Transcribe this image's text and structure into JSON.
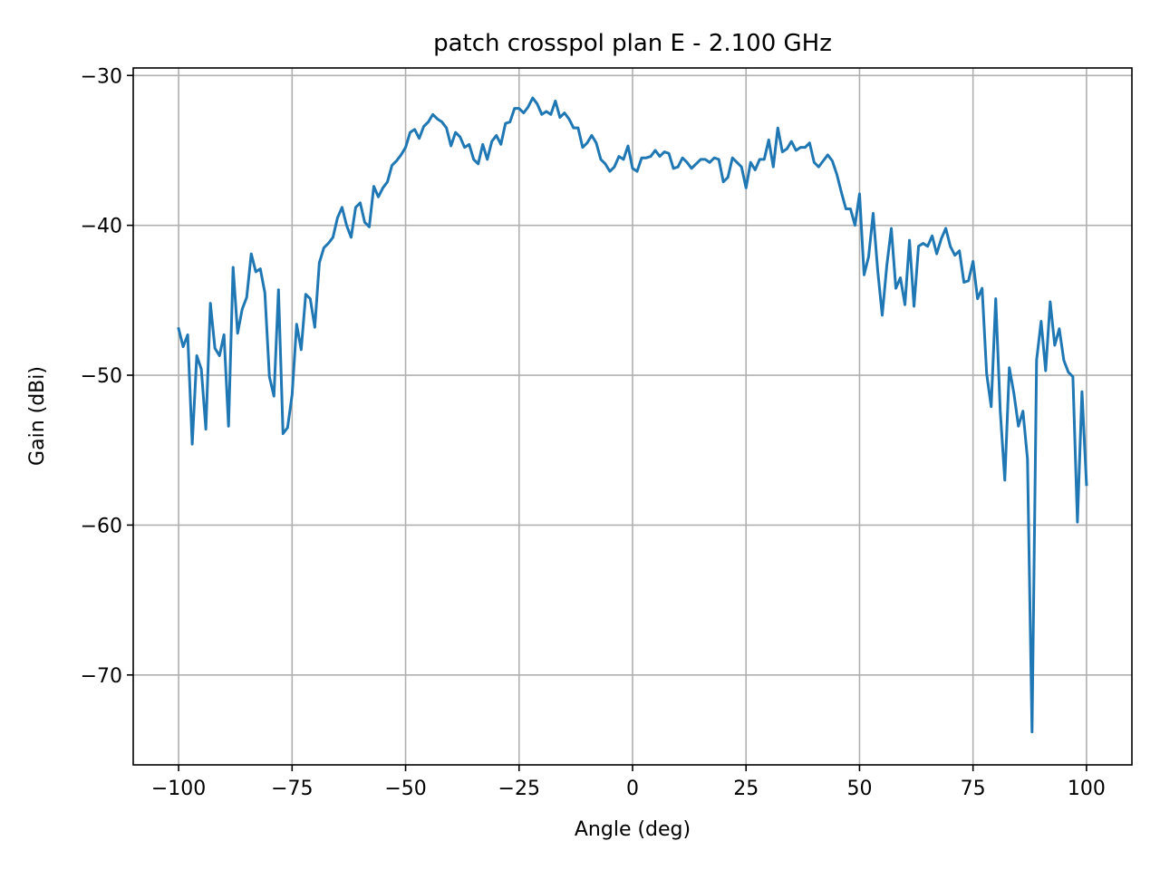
{
  "chart_data": {
    "type": "line",
    "title": "patch crosspol plan E - 2.100 GHz",
    "xlabel": "Angle (deg)",
    "ylabel": "Gain (dBi)",
    "xlim": [
      -110,
      110
    ],
    "ylim": [
      -76,
      -29.5
    ],
    "xticks": [
      -100,
      -75,
      -50,
      -25,
      0,
      25,
      50,
      75,
      100
    ],
    "xtick_labels": [
      "−100",
      "−75",
      "−50",
      "−25",
      "0",
      "25",
      "50",
      "75",
      "100"
    ],
    "yticks": [
      -70,
      -60,
      -50,
      -40,
      -30
    ],
    "ytick_labels": [
      "−70",
      "−60",
      "−50",
      "−40",
      "−30"
    ],
    "grid": true,
    "line_color": "#1f77b4",
    "series": [
      {
        "x": [
          -100,
          -99,
          -98,
          -97,
          -96,
          -95,
          -94,
          -93,
          -92,
          -91,
          -90,
          -89,
          -88,
          -87,
          -86,
          -85,
          -84,
          -83,
          -82,
          -81,
          -80,
          -79,
          -78,
          -77,
          -76,
          -75,
          -74,
          -73,
          -72,
          -71,
          -70,
          -69,
          -68,
          -67,
          -66,
          -65,
          -64,
          -63,
          -62,
          -61,
          -60,
          -59,
          -58,
          -57,
          -56,
          -55,
          -54,
          -53,
          -52,
          -51,
          -50,
          -49,
          -48,
          -47,
          -46,
          -45,
          -44,
          -43,
          -42,
          -41,
          -40,
          -39,
          -38,
          -37,
          -36,
          -35,
          -34,
          -33,
          -32,
          -31,
          -30,
          -29,
          -28,
          -27,
          -26,
          -25,
          -24,
          -23,
          -22,
          -21,
          -20,
          -19,
          -18,
          -17,
          -16,
          -15,
          -14,
          -13,
          -12,
          -11,
          -10,
          -9,
          -8,
          -7,
          -6,
          -5,
          -4,
          -3,
          -2,
          -1,
          0,
          1,
          2,
          3,
          4,
          5,
          6,
          7,
          8,
          9,
          10,
          11,
          12,
          13,
          14,
          15,
          16,
          17,
          18,
          19,
          20,
          21,
          22,
          23,
          24,
          25,
          26,
          27,
          28,
          29,
          30,
          31,
          32,
          33,
          34,
          35,
          36,
          37,
          38,
          39,
          40,
          41,
          42,
          43,
          44,
          45,
          46,
          47,
          48,
          49,
          50,
          51,
          52,
          53,
          54,
          55,
          56,
          57,
          58,
          59,
          60,
          61,
          62,
          63,
          64,
          65,
          66,
          67,
          68,
          69,
          70,
          71,
          72,
          73,
          74,
          75,
          76,
          77,
          78,
          79,
          80,
          81,
          82,
          83,
          84,
          85,
          86,
          87,
          88,
          89,
          90,
          91,
          92,
          93,
          94,
          95,
          96,
          97,
          98,
          99,
          100
        ],
        "y": [
          -46.9,
          -48.1,
          -47.3,
          -54.6,
          -48.7,
          -49.6,
          -53.6,
          -45.2,
          -48.2,
          -48.7,
          -47.3,
          -53.4,
          -42.8,
          -47.2,
          -45.6,
          -44.8,
          -41.9,
          -43.1,
          -42.9,
          -44.5,
          -50.1,
          -51.4,
          -44.3,
          -53.9,
          -53.5,
          -51.3,
          -46.6,
          -48.3,
          -44.6,
          -44.9,
          -46.8,
          -42.5,
          -41.5,
          -41.2,
          -40.8,
          -39.5,
          -38.8,
          -40.0,
          -40.8,
          -38.8,
          -38.5,
          -39.8,
          -40.1,
          -37.4,
          -38.1,
          -37.5,
          -37.1,
          -36.0,
          -35.7,
          -35.3,
          -34.8,
          -33.8,
          -33.6,
          -34.2,
          -33.4,
          -33.1,
          -32.6,
          -32.9,
          -33.1,
          -33.5,
          -34.7,
          -33.8,
          -34.1,
          -34.8,
          -34.6,
          -35.6,
          -35.9,
          -34.6,
          -35.6,
          -34.4,
          -34.0,
          -34.6,
          -33.2,
          -33.1,
          -32.2,
          -32.2,
          -32.5,
          -32.1,
          -31.5,
          -31.9,
          -32.6,
          -32.4,
          -32.6,
          -31.7,
          -32.8,
          -32.5,
          -32.9,
          -33.5,
          -33.5,
          -34.8,
          -34.5,
          -34.0,
          -34.5,
          -35.6,
          -35.9,
          -36.4,
          -36.1,
          -35.4,
          -35.6,
          -34.7,
          -36.2,
          -36.4,
          -35.5,
          -35.5,
          -35.4,
          -35.0,
          -35.4,
          -35.1,
          -35.2,
          -36.2,
          -36.1,
          -35.5,
          -35.8,
          -36.2,
          -35.9,
          -35.6,
          -35.6,
          -35.8,
          -35.5,
          -35.6,
          -37.1,
          -36.8,
          -35.5,
          -35.8,
          -36.1,
          -37.5,
          -35.8,
          -36.3,
          -35.6,
          -35.6,
          -34.3,
          -36.1,
          -33.5,
          -35.1,
          -34.9,
          -34.4,
          -35.0,
          -34.8,
          -34.8,
          -34.5,
          -35.8,
          -36.1,
          -35.7,
          -35.3,
          -35.7,
          -36.6,
          -37.8,
          -38.9,
          -38.9,
          -40.0,
          -37.9,
          -43.3,
          -42.1,
          -39.2,
          -43.0,
          -46.0,
          -42.7,
          -40.2,
          -44.2,
          -43.5,
          -45.3,
          -41.0,
          -45.4,
          -41.4,
          -41.2,
          -41.4,
          -40.7,
          -41.9,
          -40.9,
          -40.2,
          -41.4,
          -42.0,
          -41.7,
          -43.8,
          -43.7,
          -42.4,
          -44.9,
          -44.2,
          -49.9,
          -52.1,
          -44.9,
          -52.4,
          -57.0,
          -49.5,
          -51.2,
          -53.4,
          -52.4,
          -55.6,
          -73.8,
          -49.0,
          -46.4,
          -49.7,
          -45.1,
          -48.0,
          -46.9,
          -49.0,
          -49.8,
          -50.1,
          -59.8,
          -51.1,
          -57.3
        ]
      }
    ]
  }
}
